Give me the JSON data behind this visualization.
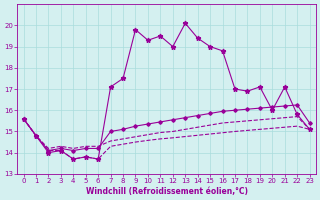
{
  "xlabel": "Windchill (Refroidissement éolien,°C)",
  "x_values": [
    0,
    1,
    2,
    3,
    4,
    5,
    6,
    7,
    8,
    9,
    10,
    11,
    12,
    13,
    14,
    15,
    16,
    17,
    18,
    19,
    20,
    21,
    22,
    23
  ],
  "line1": [
    15.6,
    14.8,
    14.0,
    14.1,
    13.7,
    13.8,
    13.7,
    17.1,
    17.5,
    19.8,
    19.3,
    19.5,
    19.0,
    20.1,
    19.4,
    19.0,
    18.8,
    17.0,
    16.9,
    17.1,
    16.0,
    17.1,
    15.8,
    15.1
  ],
  "line2": [
    15.6,
    14.8,
    14.1,
    14.2,
    14.1,
    14.2,
    14.2,
    15.0,
    15.1,
    15.25,
    15.35,
    15.45,
    15.55,
    15.65,
    15.75,
    15.85,
    15.95,
    16.0,
    16.05,
    16.1,
    16.15,
    16.2,
    16.25,
    15.4
  ],
  "line3": [
    15.6,
    14.8,
    14.2,
    14.3,
    14.2,
    14.3,
    14.3,
    14.55,
    14.65,
    14.75,
    14.85,
    14.95,
    15.0,
    15.1,
    15.2,
    15.3,
    15.4,
    15.45,
    15.5,
    15.55,
    15.6,
    15.65,
    15.7,
    15.1
  ],
  "line4": [
    15.6,
    14.8,
    14.1,
    14.1,
    13.7,
    13.8,
    13.7,
    14.3,
    14.4,
    14.5,
    14.58,
    14.65,
    14.7,
    14.76,
    14.82,
    14.88,
    14.94,
    15.0,
    15.05,
    15.1,
    15.15,
    15.2,
    15.25,
    15.1
  ],
  "line_color": "#990099",
  "bg_color": "#d4f0f0",
  "grid_color": "#aadddd",
  "ylim": [
    13,
    21
  ],
  "yticks": [
    13,
    14,
    15,
    16,
    17,
    18,
    19,
    20
  ],
  "xticks": [
    0,
    1,
    2,
    3,
    4,
    5,
    6,
    7,
    8,
    9,
    10,
    11,
    12,
    13,
    14,
    15,
    16,
    17,
    18,
    19,
    20,
    21,
    22,
    23
  ],
  "figsize": [
    3.2,
    2.0
  ],
  "dpi": 100
}
